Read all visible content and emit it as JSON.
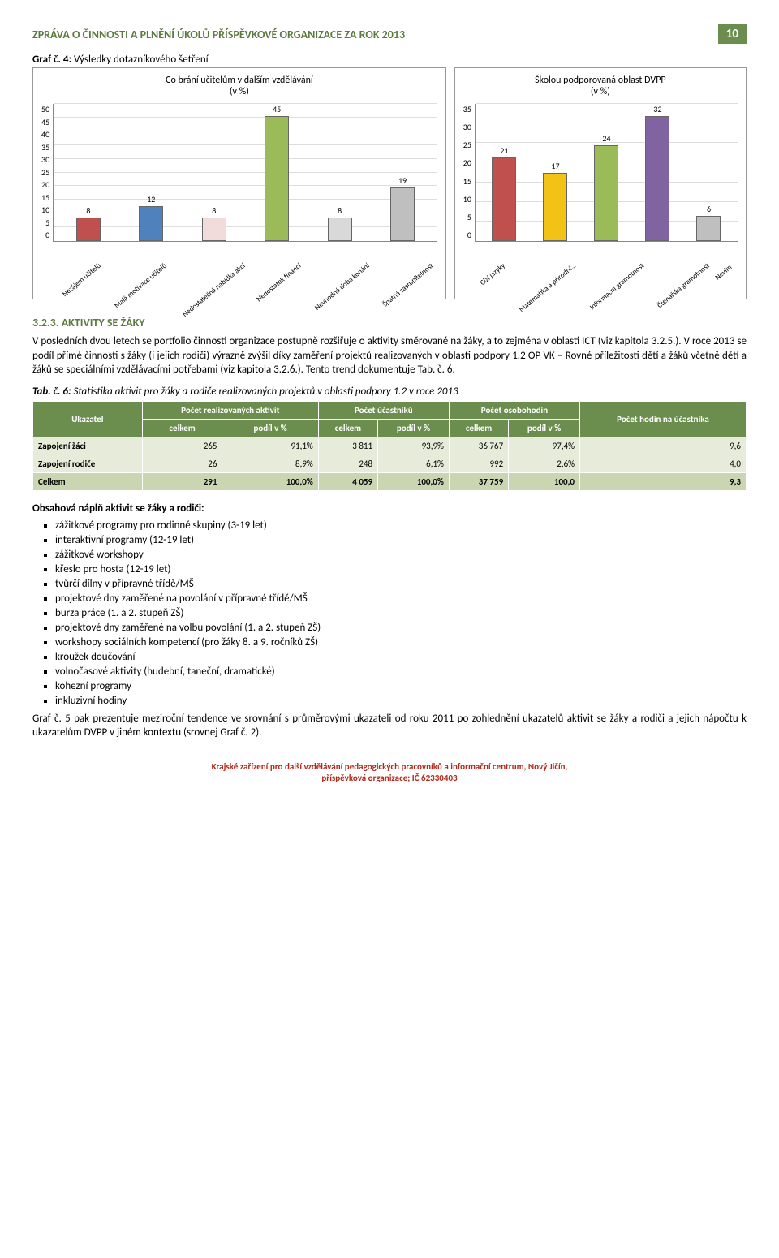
{
  "header": {
    "title": "ZPRÁVA O ČINNOSTI A PLNĚNÍ ÚKOLŮ PŘÍSPĚVKOVÉ ORGANIZACE ZA ROK 2013",
    "page": "10"
  },
  "chart_caption": {
    "prefix": "Graf č. 4:",
    "text": "Výsledky dotazníkového šetření"
  },
  "chart_left": {
    "title": "Co brání učitelům v dalším vzdělávání\n(v %)",
    "ymax": 50,
    "ytick_step": 5,
    "categories": [
      "Nezájem učitelů",
      "Malá motivace učitelů",
      "Nedostatečná nabídka akcí",
      "Nedostatek financí",
      "Nevhodná doba konání",
      "Špatná zastupitelnost"
    ],
    "values": [
      8,
      12,
      8,
      45,
      8,
      19
    ],
    "bar_colors": [
      "#c0504d",
      "#4f81bd",
      "#f2dcdb",
      "#9bbb59",
      "#d9d9d9",
      "#bfbfbf"
    ],
    "grid_color": "#dddddd"
  },
  "chart_right": {
    "title": "Školou podporovaná oblast DVPP\n(v %)",
    "ymax": 35,
    "ytick_step": 5,
    "categories": [
      "Cizí jazyky",
      "Matematika a přírodní…",
      "Informační gramotnost",
      "Čtenářská gramotnost",
      "Nevím"
    ],
    "values": [
      21,
      17,
      24,
      32,
      6
    ],
    "bar_colors": [
      "#c0504d",
      "#f2c314",
      "#9bbb59",
      "#8064a2",
      "#bfbfbf"
    ],
    "grid_color": "#dddddd"
  },
  "section": {
    "num": "3.2.3.",
    "title": "AKTIVITY SE ŽÁKY",
    "p1": "V posledních dvou letech se portfolio činnosti organizace postupně rozšiřuje o aktivity směrované na žáky, a to zejména v oblasti ICT (viz kapitola 3.2.5.). V roce 2013 se podíl přímé činnosti s žáky (i jejich rodiči) výrazně zvýšil díky zaměření projektů realizovaných v oblasti podpory 1.2 OP VK – Rovné příležitosti dětí a žáků včetně dětí a žáků se speciálními vzdělávacími potřebami (viz kapitola 3.2.6.). Tento trend dokumentuje Tab. č. 6."
  },
  "table": {
    "caption_prefix": "Tab. č. 6:",
    "caption": "Statistika aktivit pro žáky a rodiče realizovaných projektů v oblasti podpory 1.2 v roce 2013",
    "head_row1": [
      "Ukazatel",
      "Počet realizovaných aktivit",
      "Počet účastníků",
      "Počet osobohodin",
      "Počet hodin na účastníka"
    ],
    "head_row2": [
      "celkem",
      "podíl v %",
      "celkem",
      "podíl v %",
      "celkem",
      "podíl v %"
    ],
    "rows": [
      {
        "label": "Zapojení žáci",
        "cells": [
          "265",
          "91,1%",
          "3 811",
          "93,9%",
          "36 767",
          "97,4%",
          "9,6"
        ]
      },
      {
        "label": "Zapojení rodiče",
        "cells": [
          "26",
          "8,9%",
          "248",
          "6,1%",
          "992",
          "2,6%",
          "4,0"
        ]
      }
    ],
    "total": {
      "label": "Celkem",
      "cells": [
        "291",
        "100,0%",
        "4 059",
        "100,0%",
        "37 759",
        "100,0",
        "9,3"
      ]
    }
  },
  "list": {
    "heading": "Obsahová náplň aktivit se žáky a rodiči:",
    "items": [
      "zážitkové programy pro rodinné skupiny (3-19 let)",
      "interaktivní programy (12-19 let)",
      "zážitkové workshopy",
      "křeslo pro hosta (12-19 let)",
      "tvůrčí dílny v přípravné třídě/MŠ",
      "projektové dny zaměřené na povolání v přípravné třídě/MŠ",
      "burza práce (1. a 2. stupeň ZŠ)",
      "projektové dny zaměřené na volbu povolání (1. a 2. stupeň ZŠ)",
      "workshopy sociálních kompetencí (pro žáky 8. a 9. ročníků ZŠ)",
      "kroužek doučování",
      "volnočasové aktivity (hudební, taneční, dramatické)",
      "kohezní programy",
      "inkluzivní hodiny"
    ]
  },
  "closing_p": "Graf č. 5 pak prezentuje meziroční tendence ve srovnání s průměrovými ukazateli od roku 2011 po zohlednění ukazatelů aktivit se žáky a rodiči a jejich nápočtu k ukazatelům DVPP v jiném kontextu (srovnej Graf č. 2).",
  "footer": {
    "line1": "Krajské zařízení pro další vzdělávání pedagogických pracovníků a informační centrum, Nový Jičín,",
    "line2": "příspěvková organizace; IČ 62330403"
  }
}
